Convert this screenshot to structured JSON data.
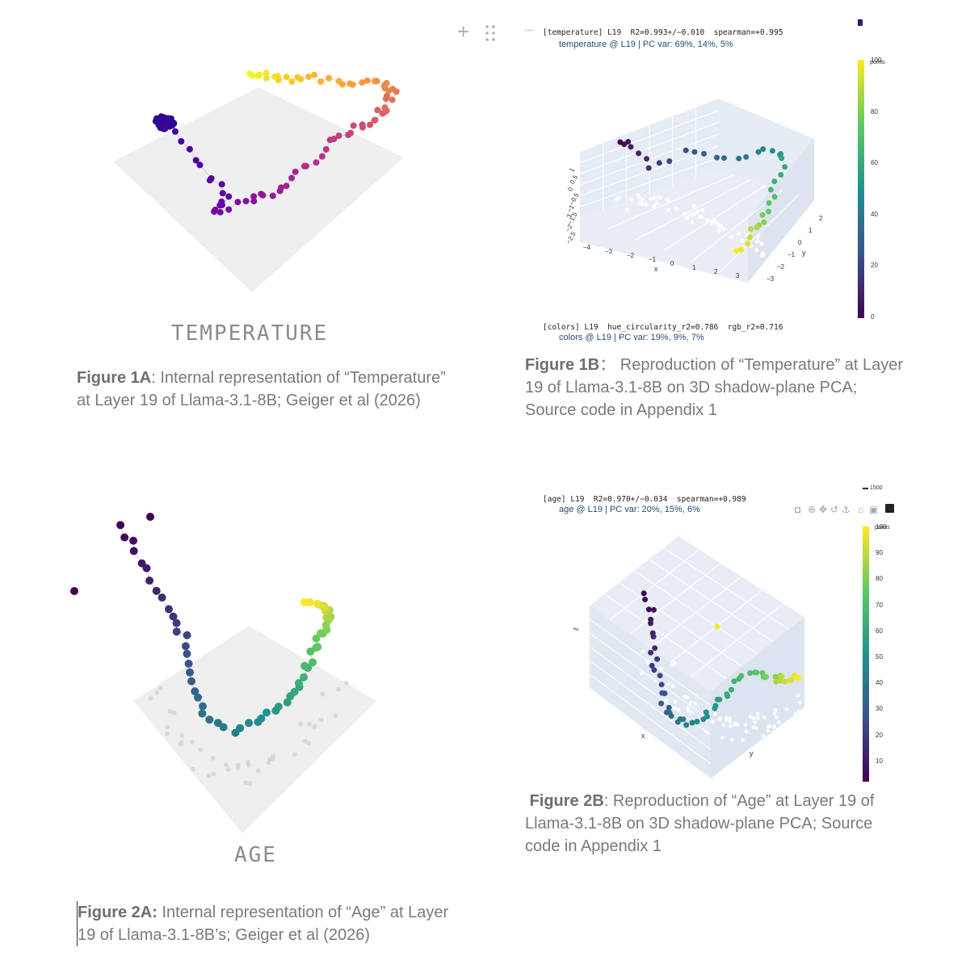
{
  "toolbar": {
    "add_icon": "plus-icon",
    "drag_icon": "drag-handle-icon",
    "more_icon": "ellipsis-icon"
  },
  "fig1a": {
    "label": "TEMPERATURE",
    "caption_bold": "Figure 1A",
    "caption_text": ": Internal representation of “Temperature” at Layer 19 of Llama-3.1-8B; Geiger et al (2026)"
  },
  "fig1b": {
    "header": "[temperature] L19  R2=0.993+/−0.010  spearman=+0.995",
    "subtitle": "temperature @ L19 | PC var: 69%, 14%, 5%",
    "colorbar_title": "points",
    "colorbar_ticks": [
      "100",
      "80",
      "60",
      "40",
      "20",
      "0"
    ],
    "axis_x": "x",
    "axis_y": "y",
    "axis_z": "z",
    "x_ticks": [
      "−4",
      "−3",
      "−2",
      "−1",
      "0",
      "1",
      "2",
      "3"
    ],
    "y_ticks": [
      "2",
      "1",
      "0",
      "−1",
      "−2",
      "−3"
    ],
    "z_ticks": [
      "1",
      "0.5",
      "0",
      "−0.5",
      "−1",
      "−1.5",
      "−2",
      "−2.5"
    ],
    "footer_header": "[colors] L19  hue_circularity_r2=0.786  rgb_r2=0.716",
    "footer_subtitle": "colors @ L19 | PC var: 19%, 9%, 7%",
    "caption_bold": "Figure 1B",
    "caption_text": "：  Reproduction of “Temperature” at Layer 19 of Llama-3.1-8B on 3D shadow-plane PCA; Source code in Appendix 1",
    "colorscale": [
      "#440154",
      "#3b528b",
      "#21918c",
      "#5ec962",
      "#fde725"
    ]
  },
  "fig2a": {
    "label": "AGE",
    "caption_bold": "Figure 2A:",
    "caption_text": " Internal representation of “Age” at Layer 19 of Llama-3.1-8B’s; Geiger et al (2026)"
  },
  "fig2b": {
    "header": "[age] L19  R2=0.970+/−0.034  spearman=+0.989",
    "subtitle": "age @ L19 | PC var: 20%, 15%, 6%",
    "colorbar_title": "points",
    "colorbar_top": "1500",
    "colorbar_ticks": [
      "100",
      "90",
      "80",
      "70",
      "60",
      "50",
      "40",
      "30",
      "20",
      "10"
    ],
    "axis_x": "x",
    "axis_y": "y",
    "axis_z": "z",
    "caption_bold": "Figure 2B",
    "caption_text": ": Reproduction of “Age” at Layer 19 of Llama-3.1-8B on 3D shadow-plane PCA; Source code in Appendix 1",
    "modebar": [
      "camera-icon",
      "zoom-icon",
      "pan-icon",
      "orbit-icon",
      "turntable-icon",
      "home-icon",
      "reset-icon",
      "plotly-logo-icon"
    ]
  }
}
